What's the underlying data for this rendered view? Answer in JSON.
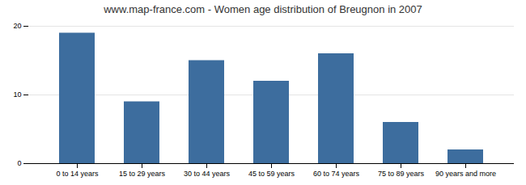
{
  "chart_data": {
    "type": "bar",
    "title": "www.map-france.com - Women age distribution of Breugnon in 2007",
    "categories": [
      "0 to 14 years",
      "15 to 29 years",
      "30 to 44 years",
      "45 to 59 years",
      "60 to 74 years",
      "75 to 89 years",
      "90 years and more"
    ],
    "values": [
      19,
      9,
      15,
      12,
      16,
      6,
      2
    ],
    "color": "#3d6d9e",
    "ylim": [
      0,
      20
    ],
    "yticks": [
      0,
      10,
      20
    ],
    "grid": true
  }
}
